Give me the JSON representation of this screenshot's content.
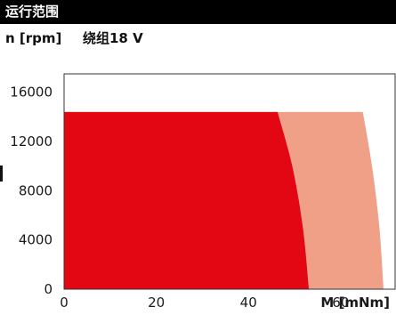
{
  "header": {
    "title": "运行范围"
  },
  "chart_data": {
    "type": "area",
    "title": "运行范围",
    "ylabel": "n [rpm]",
    "winding_label": "绕组18 V",
    "xlabel": "M [mNm]",
    "xlim": [
      0,
      72
    ],
    "ylim": [
      0,
      17500
    ],
    "x_ticks": [
      0,
      20,
      40,
      60
    ],
    "y_ticks": [
      0,
      4000,
      8000,
      12000,
      16000
    ],
    "speed_limit": 14400,
    "series": [
      {
        "name": "",
        "role": "continuous",
        "color": "#e30613",
        "boundary": [
          {
            "x": 0,
            "y": 14400
          },
          {
            "x": 46.3,
            "y": 14400
          },
          {
            "x": 49.5,
            "y": 10000
          },
          {
            "x": 51.8,
            "y": 5000
          },
          {
            "x": 53.1,
            "y": 0
          }
        ]
      },
      {
        "name": "",
        "role": "intermittent",
        "color": "#f1a088",
        "boundary": [
          {
            "x": 0,
            "y": 14400
          },
          {
            "x": 64.8,
            "y": 14400
          },
          {
            "x": 66.8,
            "y": 10000
          },
          {
            "x": 68.4,
            "y": 5000
          },
          {
            "x": 69.3,
            "y": 0
          }
        ]
      }
    ],
    "grid": false,
    "legend": "none"
  }
}
